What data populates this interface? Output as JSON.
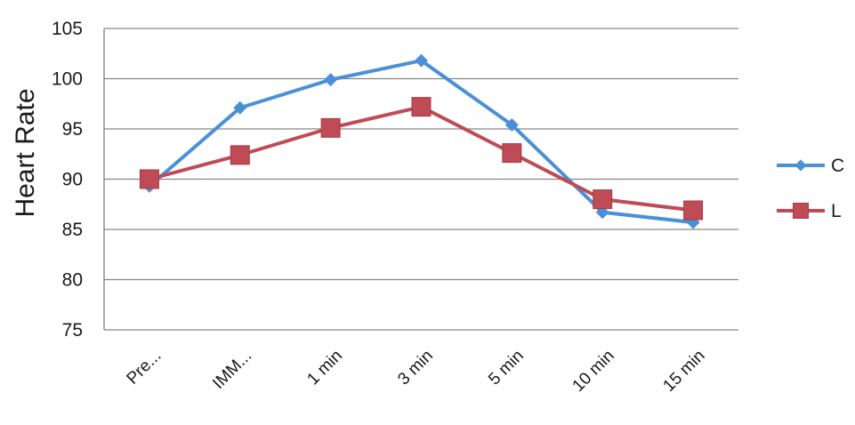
{
  "chart_data": {
    "type": "line",
    "categories": [
      "Pre...",
      "IMM...",
      "1 min",
      "3 min",
      "5 min",
      "10 min",
      "15 min"
    ],
    "series": [
      {
        "name": "C",
        "values": [
          89.3,
          97.1,
          99.9,
          101.8,
          95.4,
          86.7,
          85.7
        ],
        "color": "#4A90D9",
        "marker": "diamond"
      },
      {
        "name": "L",
        "values": [
          90.0,
          92.4,
          95.1,
          97.2,
          92.6,
          88.0,
          86.9
        ],
        "color": "#BE4B55",
        "marker": "square"
      }
    ],
    "title": "",
    "xlabel": "",
    "ylabel": "Heart Rate",
    "ylim": [
      75,
      105
    ],
    "yticks": [
      75,
      80,
      85,
      90,
      95,
      100,
      105
    ],
    "grid": true,
    "legend_position": "right"
  }
}
